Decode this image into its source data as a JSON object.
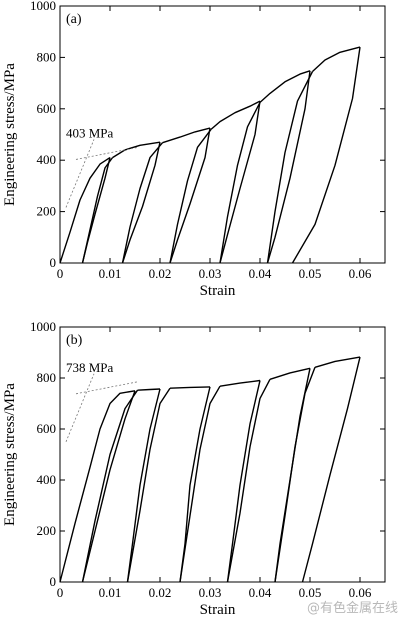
{
  "watermark": "@有色金属在线",
  "chart_data": [
    {
      "type": "line",
      "panel_label": "(a)",
      "xlabel": "Strain",
      "ylabel": "Engineering stress/MPa",
      "xlim": [
        0,
        0.065
      ],
      "ylim": [
        0,
        1000
      ],
      "xticks": [
        0,
        0.01,
        0.02,
        0.03,
        0.04,
        0.05,
        0.06
      ],
      "xtick_labels": [
        "0",
        "0.01",
        "0.02",
        "0.03",
        "0.04",
        "0.05",
        "0.06"
      ],
      "yticks": [
        0,
        200,
        400,
        600,
        800,
        1000
      ],
      "ytick_labels": [
        "0",
        "200",
        "400",
        "600",
        "800",
        "1000"
      ],
      "annotation": {
        "text": "403 MPa",
        "value": 403
      },
      "cycles": [
        {
          "load": [
            [
              0,
              0
            ],
            [
              0.002,
              120
            ],
            [
              0.004,
              245
            ],
            [
              0.006,
              330
            ],
            [
              0.008,
              385
            ],
            [
              0.01,
              410
            ]
          ],
          "unload": [
            [
              0.01,
              410
            ],
            [
              0.009,
              330
            ],
            [
              0.007,
              190
            ],
            [
              0.0055,
              80
            ],
            [
              0.0045,
              0
            ]
          ],
          "reload": [
            [
              0.0045,
              0
            ],
            [
              0.006,
              130
            ],
            [
              0.0075,
              260
            ],
            [
              0.009,
              370
            ],
            [
              0.0105,
              410
            ]
          ]
        },
        {
          "load": [
            [
              0.0105,
              410
            ],
            [
              0.013,
              440
            ],
            [
              0.016,
              458
            ],
            [
              0.02,
              470
            ]
          ],
          "unload": [
            [
              0.02,
              470
            ],
            [
              0.019,
              380
            ],
            [
              0.0165,
              220
            ],
            [
              0.014,
              90
            ],
            [
              0.0125,
              0
            ]
          ],
          "reload": [
            [
              0.0125,
              0
            ],
            [
              0.014,
              140
            ],
            [
              0.016,
              290
            ],
            [
              0.018,
              410
            ],
            [
              0.0205,
              468
            ]
          ]
        },
        {
          "load": [
            [
              0.0205,
              468
            ],
            [
              0.024,
              490
            ],
            [
              0.027,
              510
            ],
            [
              0.03,
              525
            ]
          ],
          "unload": [
            [
              0.03,
              525
            ],
            [
              0.029,
              410
            ],
            [
              0.026,
              230
            ],
            [
              0.0235,
              90
            ],
            [
              0.022,
              0
            ]
          ],
          "reload": [
            [
              0.022,
              0
            ],
            [
              0.0235,
              150
            ],
            [
              0.0255,
              320
            ],
            [
              0.0275,
              450
            ],
            [
              0.0302,
              520
            ]
          ]
        },
        {
          "load": [
            [
              0.0302,
              520
            ],
            [
              0.032,
              550
            ],
            [
              0.035,
              585
            ],
            [
              0.038,
              610
            ],
            [
              0.04,
              630
            ]
          ],
          "unload": [
            [
              0.04,
              630
            ],
            [
              0.039,
              500
            ],
            [
              0.036,
              290
            ],
            [
              0.0335,
              110
            ],
            [
              0.032,
              0
            ]
          ],
          "reload": [
            [
              0.032,
              0
            ],
            [
              0.0335,
              180
            ],
            [
              0.0355,
              380
            ],
            [
              0.0375,
              530
            ],
            [
              0.04,
              625
            ]
          ]
        },
        {
          "load": [
            [
              0.04,
              625
            ],
            [
              0.042,
              660
            ],
            [
              0.045,
              705
            ],
            [
              0.048,
              735
            ],
            [
              0.05,
              748
            ]
          ],
          "unload": [
            [
              0.05,
              748
            ],
            [
              0.049,
              600
            ],
            [
              0.046,
              330
            ],
            [
              0.043,
              100
            ],
            [
              0.0415,
              0
            ]
          ],
          "reload": [
            [
              0.0415,
              0
            ],
            [
              0.043,
              200
            ],
            [
              0.045,
              430
            ],
            [
              0.0475,
              630
            ],
            [
              0.0505,
              745
            ]
          ]
        },
        {
          "load": [
            [
              0.0505,
              745
            ],
            [
              0.053,
              790
            ],
            [
              0.056,
              820
            ],
            [
              0.06,
              840
            ]
          ],
          "unload": [
            [
              0.06,
              840
            ],
            [
              0.0585,
              640
            ],
            [
              0.055,
              380
            ],
            [
              0.051,
              150
            ],
            [
              0.0465,
              0
            ]
          ]
        }
      ]
    },
    {
      "type": "line",
      "panel_label": "(b)",
      "xlabel": "Strain",
      "ylabel": "Engineering stress/MPa",
      "xlim": [
        0,
        0.065
      ],
      "ylim": [
        0,
        1000
      ],
      "xticks": [
        0,
        0.01,
        0.02,
        0.03,
        0.04,
        0.05,
        0.06
      ],
      "xtick_labels": [
        "0",
        "0.01",
        "0.02",
        "0.03",
        "0.04",
        "0.05",
        "0.06"
      ],
      "yticks": [
        0,
        200,
        400,
        600,
        800,
        1000
      ],
      "ytick_labels": [
        "0",
        "200",
        "400",
        "600",
        "800",
        "1000"
      ],
      "annotation": {
        "text": "738 MPa",
        "value": 738
      },
      "cycles": [
        {
          "load": [
            [
              0,
              0
            ],
            [
              0.003,
              230
            ],
            [
              0.006,
              450
            ],
            [
              0.008,
              600
            ],
            [
              0.01,
              700
            ],
            [
              0.012,
              740
            ],
            [
              0.015,
              750
            ]
          ],
          "unload": [
            [
              0.015,
              750
            ],
            [
              0.013,
              640
            ],
            [
              0.01,
              440
            ],
            [
              0.007,
              200
            ],
            [
              0.0045,
              0
            ]
          ],
          "reload": [
            [
              0.0045,
              0
            ],
            [
              0.007,
              240
            ],
            [
              0.01,
              500
            ],
            [
              0.013,
              680
            ],
            [
              0.0155,
              752
            ]
          ]
        },
        {
          "load": [
            [
              0.0155,
              752
            ],
            [
              0.018,
              755
            ],
            [
              0.02,
              757
            ]
          ],
          "unload": [
            [
              0.02,
              757
            ],
            [
              0.018,
              600
            ],
            [
              0.016,
              380
            ],
            [
              0.0145,
              150
            ],
            [
              0.0135,
              0
            ]
          ],
          "reload": [
            [
              0.0135,
              0
            ],
            [
              0.016,
              280
            ],
            [
              0.018,
              520
            ],
            [
              0.02,
              700
            ],
            [
              0.022,
              760
            ]
          ]
        },
        {
          "load": [
            [
              0.022,
              760
            ],
            [
              0.026,
              763
            ],
            [
              0.03,
              765
            ]
          ],
          "unload": [
            [
              0.03,
              765
            ],
            [
              0.028,
              600
            ],
            [
              0.026,
              380
            ],
            [
              0.025,
              150
            ],
            [
              0.024,
              0
            ]
          ],
          "reload": [
            [
              0.024,
              0
            ],
            [
              0.026,
              260
            ],
            [
              0.028,
              520
            ],
            [
              0.03,
              700
            ],
            [
              0.032,
              768
            ]
          ]
        },
        {
          "load": [
            [
              0.032,
              768
            ],
            [
              0.036,
              780
            ],
            [
              0.04,
              790
            ]
          ],
          "unload": [
            [
              0.04,
              790
            ],
            [
              0.038,
              620
            ],
            [
              0.036,
              380
            ],
            [
              0.0345,
              150
            ],
            [
              0.0335,
              0
            ]
          ],
          "reload": [
            [
              0.0335,
              0
            ],
            [
              0.036,
              270
            ],
            [
              0.038,
              530
            ],
            [
              0.04,
              720
            ],
            [
              0.042,
              795
            ]
          ]
        },
        {
          "load": [
            [
              0.042,
              795
            ],
            [
              0.046,
              820
            ],
            [
              0.05,
              838
            ]
          ],
          "unload": [
            [
              0.05,
              838
            ],
            [
              0.048,
              650
            ],
            [
              0.046,
              400
            ],
            [
              0.044,
              150
            ],
            [
              0.043,
              0
            ]
          ],
          "reload": [
            [
              0.043,
              0
            ],
            [
              0.045,
              260
            ],
            [
              0.047,
              530
            ],
            [
              0.049,
              740
            ],
            [
              0.051,
              842
            ]
          ]
        },
        {
          "load": [
            [
              0.051,
              842
            ],
            [
              0.055,
              865
            ],
            [
              0.06,
              882
            ]
          ],
          "unload": [
            [
              0.06,
              882
            ],
            [
              0.0575,
              680
            ],
            [
              0.054,
              420
            ],
            [
              0.0505,
              150
            ],
            [
              0.0485,
              0
            ]
          ]
        }
      ]
    }
  ]
}
